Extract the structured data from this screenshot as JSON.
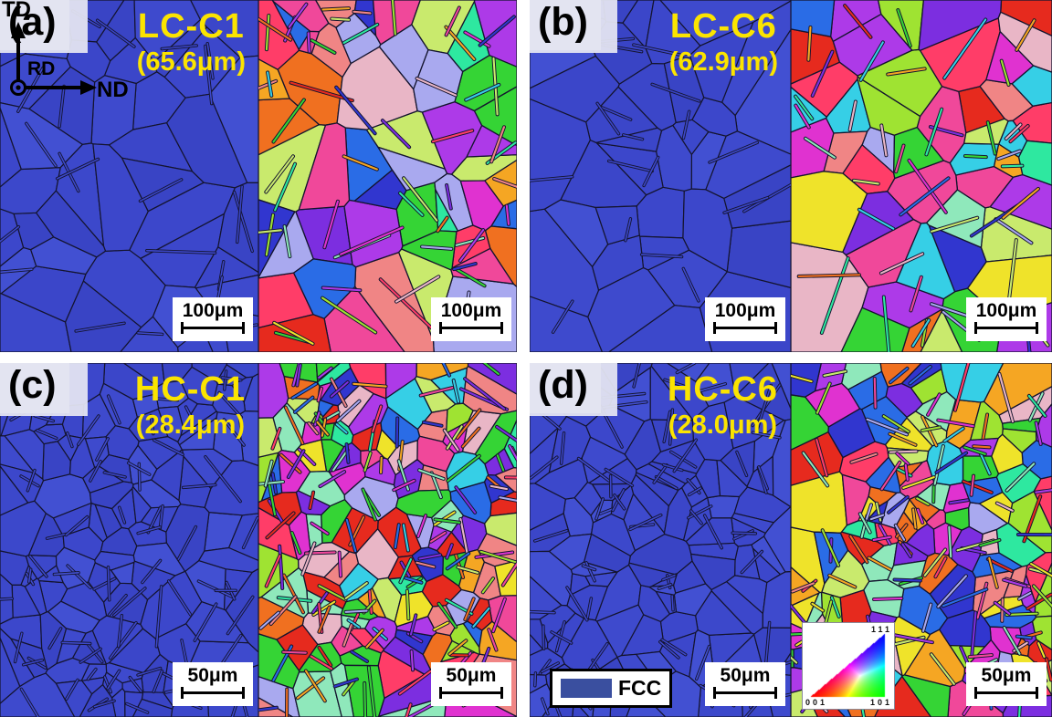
{
  "figure": {
    "panels": [
      {
        "label": "(a)",
        "sample": "LC-C1",
        "grain_size": "(65.6μm)",
        "scale_bar": "100μm"
      },
      {
        "label": "(b)",
        "sample": "LC-C6",
        "grain_size": "(62.9μm)",
        "scale_bar": "100μm"
      },
      {
        "label": "(c)",
        "sample": "HC-C1",
        "grain_size": "(28.4μm)",
        "scale_bar": "50μm"
      },
      {
        "label": "(d)",
        "sample": "HC-C6",
        "grain_size": "(28.0μm)",
        "scale_bar": "50μm"
      }
    ],
    "axes": {
      "up": "TD",
      "right": "ND",
      "origin": "RD"
    },
    "phase_legend": {
      "label": "FCC"
    },
    "ipf_legend": {
      "corner_001": "001",
      "corner_101": "101",
      "corner_111": "111"
    },
    "colors": {
      "phase_blue": "#3c47cb",
      "highlight_yellow": "#fbe400",
      "fcc_swatch": "#3a4f9f",
      "boundary": "#14142e",
      "label_patch": "#e3e4f1",
      "ipf_palette": [
        "#e62a1e",
        "#f07020",
        "#f5a623",
        "#efe32a",
        "#9fe332",
        "#35d435",
        "#2ee8a0",
        "#36cfe6",
        "#2a6ce6",
        "#3136cf",
        "#7c2ee0",
        "#ad3ae8",
        "#e032d0",
        "#f0489a",
        "#f08585",
        "#e9b6c6",
        "#8fe8bb",
        "#c9ea6d",
        "#a9a9ef",
        "#ff3d68"
      ]
    }
  }
}
